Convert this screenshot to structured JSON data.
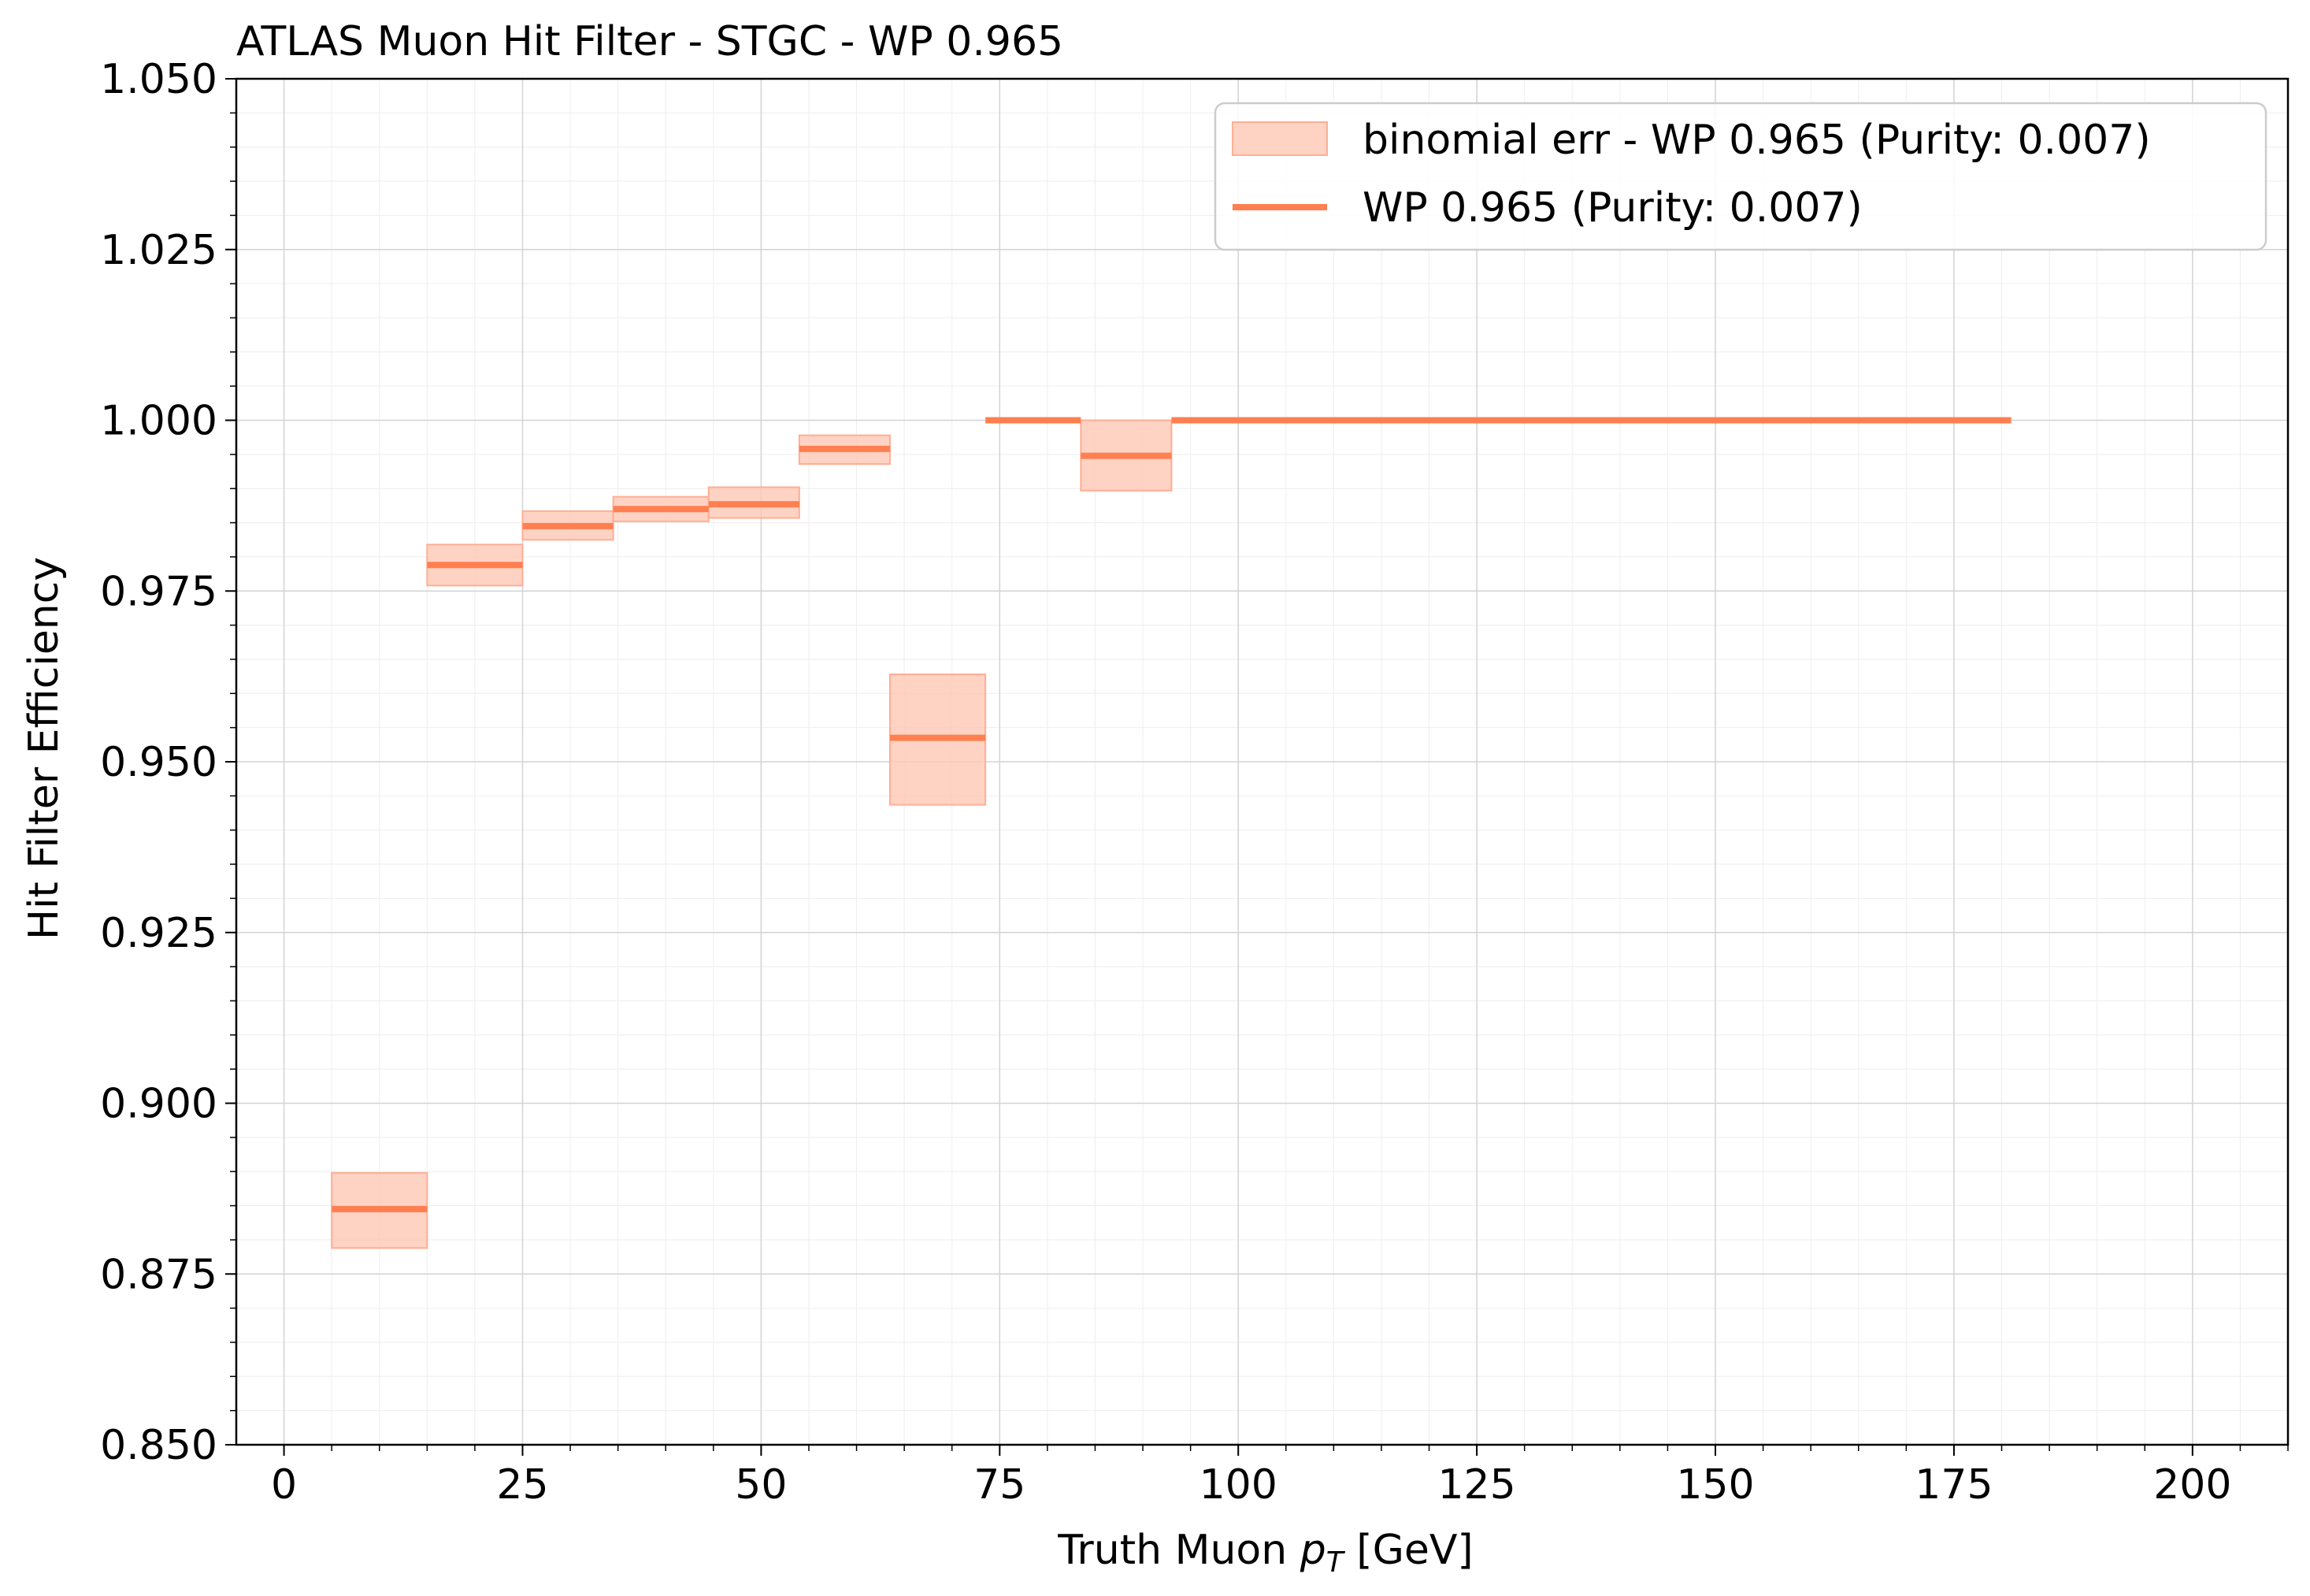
{
  "chart_data": {
    "type": "step",
    "title": "ATLAS Muon Hit Filter - STGC - WP 0.965",
    "xlabel_main": "Truth Muon ",
    "xlabel_p": "p",
    "xlabel_sub": "T",
    "xlabel_unit": " [GeV]",
    "ylabel": "Hit Filter Efficiency",
    "xlim": [
      -5,
      210
    ],
    "ylim": [
      0.85,
      1.05
    ],
    "x_ticks": [
      0,
      25,
      50,
      75,
      100,
      125,
      150,
      175,
      200
    ],
    "x_tick_labels": [
      "0",
      "25",
      "50",
      "75",
      "100",
      "125",
      "150",
      "175",
      "200"
    ],
    "y_ticks": [
      0.85,
      0.875,
      0.9,
      0.925,
      0.95,
      0.975,
      1.0,
      1.025,
      1.05
    ],
    "y_tick_labels": [
      "0.850",
      "0.875",
      "0.900",
      "0.925",
      "0.950",
      "0.975",
      "1.000",
      "1.025",
      "1.050"
    ],
    "grid": true,
    "minor_grid": true,
    "legend_position": "top-right",
    "colors": {
      "line": "#ff7f50",
      "band_fill": "#ffc8b4",
      "band_edge": "#ffae94"
    },
    "series": [
      {
        "name": "WP 0.965 (Purity: 0.007)",
        "band_label": "binomial err - WP 0.965 (Purity: 0.007)",
        "bins": [
          {
            "x_low": 5,
            "x_high": 15,
            "y": 0.8845,
            "err_low": 0.8788,
            "err_high": 0.8898
          },
          {
            "x_low": 15,
            "x_high": 25,
            "y": 0.9788,
            "err_low": 0.9758,
            "err_high": 0.9818
          },
          {
            "x_low": 25,
            "x_high": 34.5,
            "y": 0.9845,
            "err_low": 0.9825,
            "err_high": 0.9867
          },
          {
            "x_low": 34.5,
            "x_high": 44.5,
            "y": 0.987,
            "err_low": 0.9852,
            "err_high": 0.9888
          },
          {
            "x_low": 44.5,
            "x_high": 54,
            "y": 0.9877,
            "err_low": 0.9857,
            "err_high": 0.9902
          },
          {
            "x_low": 54,
            "x_high": 63.5,
            "y": 0.9958,
            "err_low": 0.9936,
            "err_high": 0.9978
          },
          {
            "x_low": 63.5,
            "x_high": 73.5,
            "y": 0.9535,
            "err_low": 0.9437,
            "err_high": 0.9628
          },
          {
            "x_low": 73.5,
            "x_high": 83.5,
            "y": 1.0,
            "err_low": 1.0,
            "err_high": 1.0
          },
          {
            "x_low": 83.5,
            "x_high": 93,
            "y": 0.9948,
            "err_low": 0.9897,
            "err_high": 1.0
          },
          {
            "x_low": 93,
            "x_high": 181,
            "y": 1.0,
            "err_low": 1.0,
            "err_high": 1.0
          }
        ]
      }
    ]
  }
}
